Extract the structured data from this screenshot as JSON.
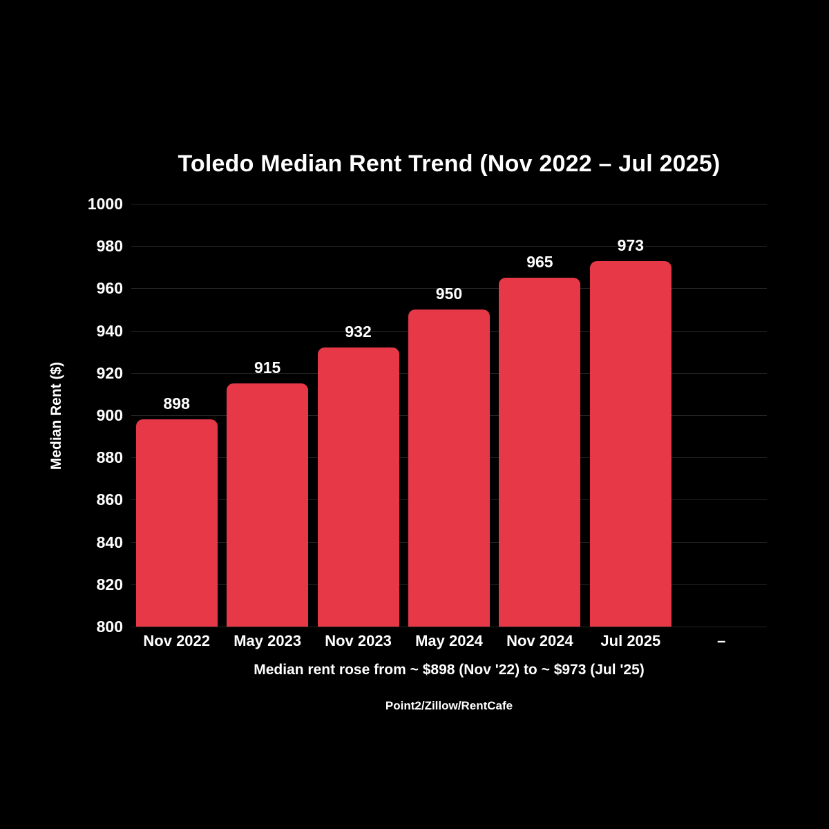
{
  "page": {
    "background_color": "#000000",
    "text_color": "#ffffff",
    "gridline_color": "#262626"
  },
  "chart_data": {
    "type": "bar",
    "title": "Toledo Median Rent Trend (Nov 2022 – Jul 2025)",
    "ylabel": "Median Rent ($)",
    "xlabel": "",
    "categories": [
      "Nov 2022",
      "May 2023",
      "Nov 2023",
      "May 2024",
      "Nov 2024",
      "Jul 2025",
      "–"
    ],
    "values": [
      898,
      915,
      932,
      950,
      965,
      973,
      null
    ],
    "bar_value_labels": [
      "898",
      "915",
      "932",
      "950",
      "965",
      "973",
      ""
    ],
    "ylim": [
      800,
      1000
    ],
    "yticks": [
      800,
      820,
      840,
      860,
      880,
      900,
      920,
      940,
      960,
      980,
      1000
    ],
    "grid": true,
    "legend_position": "none",
    "bar_color": "#e73848",
    "caption": "Median rent rose from ~ $898 (Nov '22) to ~ $973 (Jul '25)",
    "source": "Point2/Zillow/RentCafe"
  }
}
